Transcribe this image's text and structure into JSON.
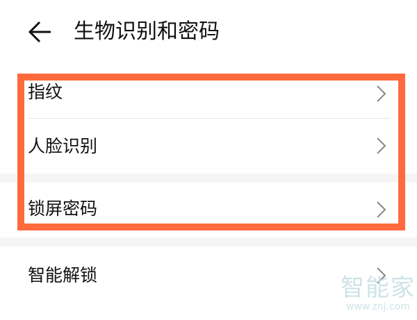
{
  "header": {
    "title": "生物识别和密码",
    "back_icon": "arrow-left-icon"
  },
  "items": [
    {
      "label": "指纹",
      "icon": "chevron-right-icon"
    },
    {
      "label": "人脸识别",
      "icon": "chevron-right-icon"
    },
    {
      "label": "锁屏密码",
      "icon": "chevron-right-icon"
    },
    {
      "label": "智能解锁",
      "icon": "chevron-right-icon"
    }
  ],
  "highlight_color": "#FF6A3D",
  "watermark": {
    "text": "智能家",
    "url": "www.znj.com"
  }
}
